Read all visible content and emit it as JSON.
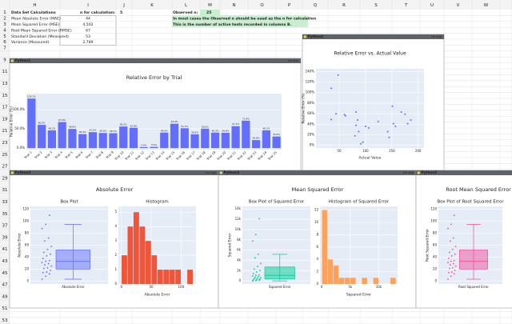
{
  "sheet": {
    "columns": [
      "H",
      "I",
      "J",
      "K",
      "L",
      "M",
      "N",
      "O",
      "P",
      "Q",
      "R",
      "S",
      "T",
      "U",
      "V",
      "W"
    ],
    "rows": [
      1,
      2,
      3,
      4,
      5,
      6,
      7,
      9,
      11,
      13,
      15,
      17,
      19,
      21,
      23,
      25,
      27,
      29,
      31,
      33,
      35,
      37,
      39,
      41,
      43,
      45,
      47,
      49,
      51,
      53
    ],
    "cells": [
      "Data Set Calculations",
      "n for calculation:",
      "5",
      "Observed n:",
      "25",
      "Mean Absolute Error (MAE)",
      "44",
      "Mean Squared Error (MSE)",
      "4,502",
      "Root Mean Squared Error (RMSE)",
      "67",
      "Standard Deviation (Measured)",
      "53",
      "Variance (Measured)",
      "2,789",
      "In most cases the Observed n should be used as the n for calculation",
      "This is the number of active tests recorded in columns B."
    ]
  },
  "panels": [
    {
      "tab": "Python1",
      "status": "1m ago",
      "chart": {
        "type": "bar",
        "title": "Relative Error by Trial",
        "y_label": "Relative Error (%)",
        "color": "#636efa",
        "categories": [
          "Trial 1",
          "Trial 2",
          "Trial 3",
          "Trial 4",
          "Trial 5",
          "Trial 6",
          "Trial 7",
          "Trial 8",
          "Trial 9",
          "Trial 10",
          "Trial 11",
          "Trial 12",
          "Trial 13",
          "Trial 14",
          "Trial 15",
          "Trial 16",
          "Trial 17",
          "Trial 18",
          "Trial 19",
          "Trial 20",
          "Trial 21",
          "Trial 22",
          "Trial 23",
          "Trial 24",
          "Trial 25"
        ],
        "values": [
          129.1,
          60.5,
          46.2,
          67.9,
          49.8,
          36.4,
          41.5,
          39.3,
          38.7,
          56.2,
          52.8,
          2.5,
          3.1,
          40.2,
          63.4,
          51.7,
          35.9,
          50.6,
          40.3,
          39.8,
          57.1,
          71.4,
          20.8,
          46.3,
          30.2
        ],
        "value_labels": [
          "129.1%",
          "60.5%",
          "46.2%",
          "67.9%",
          "49.8%",
          "36.4%",
          "41.5%",
          "39.3%",
          "38.7%",
          "56.2%",
          "52.8%",
          "2.5%",
          "3.1%",
          "40.2%",
          "63.4%",
          "51.7%",
          "35.9%",
          "50.6%",
          "40.3%",
          "39.8%",
          "57.1%",
          "71.4%",
          "20.8%",
          "46.3%",
          "30.2%"
        ],
        "ylim": [
          -4,
          142
        ],
        "yticks": [
          {
            "value": 0,
            "label": "0.0%"
          },
          {
            "value": 50,
            "label": "50.0%"
          },
          {
            "value": 100,
            "label": "100.0%"
          }
        ]
      }
    },
    {
      "tab": "Python2",
      "status": "1m ago",
      "chart": {
        "type": "scatter",
        "title": "Relative Error vs. Actual Value",
        "x_label": "Actual Value",
        "y_label": "Relative Error (%)",
        "color": "#636efa",
        "x": [
          35,
          48,
          44,
          35,
          60,
          62,
          80,
          82,
          85,
          82,
          87,
          91,
          100,
          106,
          124,
          142,
          145,
          151,
          153,
          157,
          168,
          175,
          180,
          186,
          95
        ],
        "values": [
          108,
          133,
          60,
          49,
          58,
          56,
          18,
          63,
          48,
          38,
          26,
          3,
          36,
          33,
          45,
          26,
          15,
          74,
          41,
          36,
          63,
          59,
          41,
          48,
          6
        ],
        "xlim": [
          6,
          211
        ],
        "xticks": [
          50,
          100,
          150,
          200
        ],
        "ylim": [
          -5,
          145
        ],
        "yticks": [
          {
            "value": 0,
            "label": "0%"
          },
          {
            "value": 20,
            "label": "20%"
          },
          {
            "value": 40,
            "label": "40%"
          },
          {
            "value": 60,
            "label": "60%"
          },
          {
            "value": 80,
            "label": "80%"
          },
          {
            "value": 100,
            "label": "100%"
          },
          {
            "value": 120,
            "label": "120%"
          },
          {
            "value": 140,
            "label": "140%"
          }
        ]
      }
    },
    {
      "tab": "Python3",
      "status": "1m ago",
      "heading": "Absolute Error",
      "charts": [
        {
          "type": "box",
          "title": "Box Plot",
          "x_category": "Absolute Error",
          "y_label": "Absolute Error",
          "color": "#636efa",
          "points": [
            3,
            8,
            12,
            14,
            15,
            18,
            21,
            22,
            25,
            27,
            29,
            31,
            33,
            34,
            38,
            42,
            45,
            48,
            53,
            58,
            67,
            72,
            88,
            95,
            110
          ],
          "lower": 3,
          "q1": 20,
          "median": 33,
          "q3": 52,
          "upper": 95,
          "ylim": [
            -5,
            125
          ],
          "yticks": [
            0,
            20,
            40,
            60,
            80,
            100,
            120
          ]
        },
        {
          "type": "histogram",
          "title": "Histogram",
          "x_label": "Absolute Error",
          "color": "#ef553b",
          "bins": [
            0,
            10,
            20,
            30,
            40,
            50,
            60,
            70,
            80,
            90,
            100,
            110,
            120
          ],
          "counts": [
            2,
            4,
            5,
            4,
            3,
            2,
            1,
            1,
            1,
            1,
            0,
            1
          ],
          "xlim": [
            -5,
            125
          ],
          "xticks": [
            0,
            50,
            100
          ],
          "ylim": [
            0,
            5.4
          ],
          "yticks": [
            0,
            1,
            2,
            3,
            4,
            5
          ]
        }
      ]
    },
    {
      "tab": "Python4",
      "status": "1m ago",
      "heading": "Mean Squared Error",
      "charts": [
        {
          "type": "box",
          "title": "Box Plot of Squared Error",
          "x_category": "Squared Error",
          "y_label": "Squared Error",
          "color": "#00cc96",
          "points": [
            9,
            64,
            144,
            196,
            225,
            324,
            441,
            484,
            625,
            729,
            841,
            961,
            1089,
            1156,
            1444,
            1764,
            2025,
            2304,
            2809,
            3364,
            4489,
            5184,
            7744,
            9025,
            12100
          ],
          "lower": 9,
          "q1": 400,
          "median": 1089,
          "q3": 2700,
          "upper": 5184,
          "ylim": [
            -600,
            14500
          ],
          "yticks": [
            0,
            {
              "value": 2000,
              "label": "2k"
            },
            {
              "value": 4000,
              "label": "4k"
            },
            {
              "value": 6000,
              "label": "6k"
            },
            {
              "value": 8000,
              "label": "8k"
            },
            {
              "value": 10000,
              "label": "10k"
            },
            {
              "value": 12000,
              "label": "12k"
            },
            {
              "value": 14000,
              "label": "14k"
            }
          ]
        },
        {
          "type": "histogram",
          "title": "Histogram of Squared Error",
          "x_label": "Squared Error",
          "color": "#ffa15a",
          "bins": [
            0,
            1000,
            2000,
            3000,
            4000,
            5000,
            6000,
            7000,
            8000,
            9000,
            10000,
            11000,
            12000,
            13000
          ],
          "counts": [
            12,
            4,
            3,
            1,
            1,
            1,
            0,
            1,
            0,
            1,
            0,
            0,
            1
          ],
          "xlim": [
            -300,
            13300
          ],
          "xticks": [
            0,
            {
              "value": 5000,
              "label": "5k"
            },
            {
              "value": 10000,
              "label": "10k"
            }
          ],
          "ylim": [
            0,
            12.6
          ],
          "yticks": [
            0,
            2,
            4,
            6,
            8,
            10,
            12
          ]
        }
      ]
    },
    {
      "tab": "Python5",
      "heading": "Root Mean Squared Error",
      "charts": [
        {
          "type": "box",
          "title": "Box Plot of Root Squared Error",
          "x_category": "Root Squared Error",
          "y_label": "Root Squared Error",
          "color": "#f0509e",
          "points": [
            3,
            8,
            12,
            14,
            15,
            18,
            21,
            22,
            25,
            27,
            29,
            31,
            33,
            34,
            38,
            42,
            45,
            48,
            53,
            58,
            67,
            72,
            88,
            95,
            110
          ],
          "lower": 3,
          "q1": 20,
          "median": 33,
          "q3": 52,
          "upper": 95,
          "ylim": [
            -5,
            125
          ],
          "yticks": [
            0,
            20,
            40,
            60,
            80,
            100,
            120
          ]
        }
      ]
    }
  ]
}
